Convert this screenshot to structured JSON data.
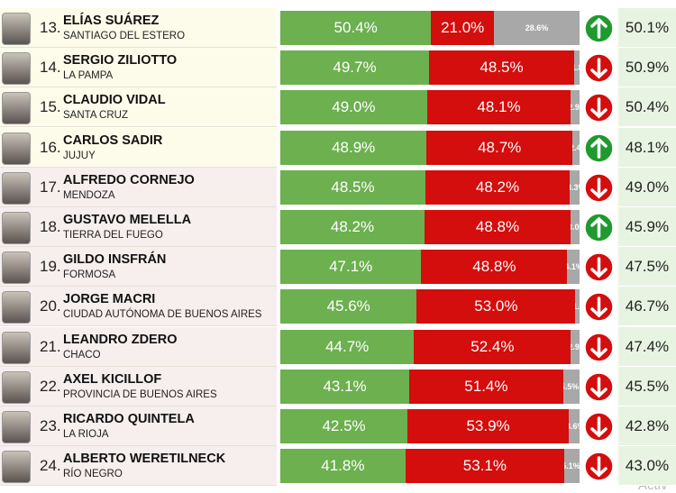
{
  "rows": [
    {
      "rank": "13.",
      "name": "ELÍAS SUÁREZ",
      "province": "SANTIAGO DEL ESTERO",
      "approve": {
        "value": 50.4,
        "label": "50.4%"
      },
      "disapprove": {
        "value": 21.0,
        "label": "21.0%"
      },
      "other": {
        "value": 28.6,
        "label": "28.6%"
      },
      "trend": "up",
      "previous": "50.1%"
    },
    {
      "rank": "14.",
      "name": "SERGIO ZILIOTTO",
      "province": "LA PAMPA",
      "approve": {
        "value": 49.7,
        "label": "49.7%"
      },
      "disapprove": {
        "value": 48.5,
        "label": "48.5%"
      },
      "other": {
        "value": 1.8,
        "label": "1.8%"
      },
      "trend": "down",
      "previous": "50.9%"
    },
    {
      "rank": "15.",
      "name": "CLAUDIO VIDAL",
      "province": "SANTA CRUZ",
      "approve": {
        "value": 49.0,
        "label": "49.0%"
      },
      "disapprove": {
        "value": 48.1,
        "label": "48.1%"
      },
      "other": {
        "value": 2.9,
        "label": "2.9%"
      },
      "trend": "down",
      "previous": "50.4%"
    },
    {
      "rank": "16.",
      "name": "CARLOS SADIR",
      "province": "JUJUY",
      "approve": {
        "value": 48.9,
        "label": "48.9%"
      },
      "disapprove": {
        "value": 48.7,
        "label": "48.7%"
      },
      "other": {
        "value": 2.4,
        "label": "2.4%"
      },
      "trend": "up",
      "previous": "48.1%"
    },
    {
      "rank": "17.",
      "name": "ALFREDO CORNEJO",
      "province": "MENDOZA",
      "approve": {
        "value": 48.5,
        "label": "48.5%"
      },
      "disapprove": {
        "value": 48.2,
        "label": "48.2%"
      },
      "other": {
        "value": 3.3,
        "label": "3.3%"
      },
      "trend": "down",
      "previous": "49.0%"
    },
    {
      "rank": "18.",
      "name": "GUSTAVO MELELLA",
      "province": "TIERRA DEL FUEGO",
      "approve": {
        "value": 48.2,
        "label": "48.2%"
      },
      "disapprove": {
        "value": 48.8,
        "label": "48.8%"
      },
      "other": {
        "value": 3.0,
        "label": "3.0%"
      },
      "trend": "up",
      "previous": "45.9%"
    },
    {
      "rank": "19.",
      "name": "GILDO INSFRÁN",
      "province": "FORMOSA",
      "approve": {
        "value": 47.1,
        "label": "47.1%"
      },
      "disapprove": {
        "value": 48.8,
        "label": "48.8%"
      },
      "other": {
        "value": 4.1,
        "label": "4.1%"
      },
      "trend": "down",
      "previous": "47.5%"
    },
    {
      "rank": "20.",
      "name": "JORGE MACRI",
      "province": "CIUDAD AUTÓNOMA DE BUENOS AIRES",
      "approve": {
        "value": 45.6,
        "label": "45.6%"
      },
      "disapprove": {
        "value": 53.0,
        "label": "53.0%"
      },
      "other": {
        "value": 1.4,
        "label": "1.4%"
      },
      "trend": "down",
      "previous": "46.7%"
    },
    {
      "rank": "21.",
      "name": "LEANDRO ZDERO",
      "province": "CHACO",
      "approve": {
        "value": 44.7,
        "label": "44.7%"
      },
      "disapprove": {
        "value": 52.4,
        "label": "52.4%"
      },
      "other": {
        "value": 2.9,
        "label": "2.9%"
      },
      "trend": "down",
      "previous": "47.4%"
    },
    {
      "rank": "22.",
      "name": "AXEL KICILLOF",
      "province": "PROVINCIA DE BUENOS AIRES",
      "approve": {
        "value": 43.1,
        "label": "43.1%"
      },
      "disapprove": {
        "value": 51.4,
        "label": "51.4%"
      },
      "other": {
        "value": 5.5,
        "label": "5.5%"
      },
      "trend": "down",
      "previous": "45.5%"
    },
    {
      "rank": "23.",
      "name": "RICARDO QUINTELA",
      "province": "LA RIOJA",
      "approve": {
        "value": 42.5,
        "label": "42.5%"
      },
      "disapprove": {
        "value": 53.9,
        "label": "53.9%"
      },
      "other": {
        "value": 3.6,
        "label": "3.6%"
      },
      "trend": "down",
      "previous": "42.8%"
    },
    {
      "rank": "24.",
      "name": "ALBERTO WERETILNECK",
      "province": "RÍO NEGRO",
      "approve": {
        "value": 41.8,
        "label": "41.8%"
      },
      "disapprove": {
        "value": 53.1,
        "label": "53.1%"
      },
      "other": {
        "value": 5.1,
        "label": "5.1%"
      },
      "trend": "down",
      "previous": "43.0%"
    }
  ],
  "watermark": "Activ"
}
